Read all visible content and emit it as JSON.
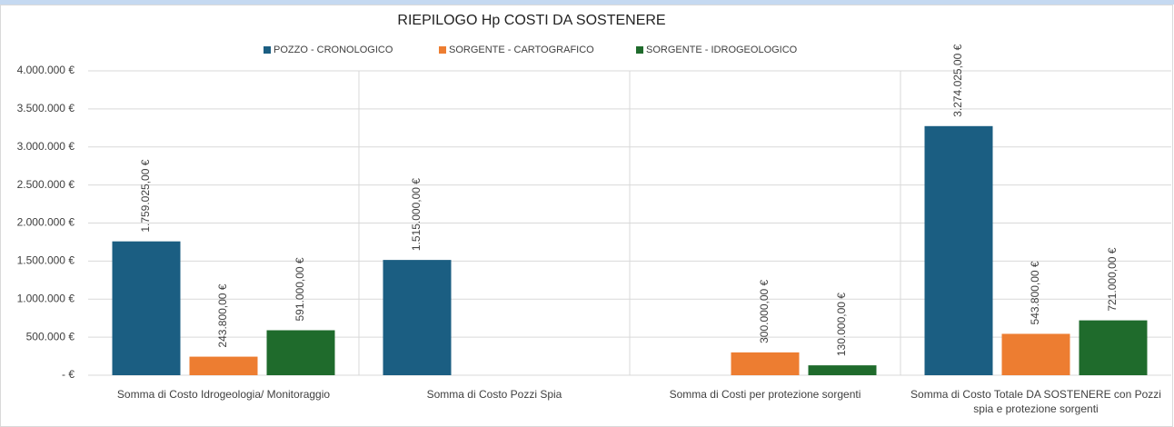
{
  "chart_data": {
    "type": "bar",
    "title": "RIEPILOGO Hp COSTI DA SOSTENERE",
    "categories": [
      "Somma di Costo Idrogeologia/ Monitoraggio",
      "Somma di Costo Pozzi Spia",
      "Somma di Costi per protezione sorgenti",
      "Somma di Costo Totale DA SOSTENERE con Pozzi spia e protezione sorgenti"
    ],
    "series": [
      {
        "name": "POZZO - CRONOLOGICO",
        "color": "#1b5e82",
        "values": [
          1759025,
          1515000,
          null,
          3274025
        ],
        "value_labels": [
          "1.759.025,00 €",
          "1.515.000,00 €",
          null,
          "3.274.025,00 €"
        ]
      },
      {
        "name": "SORGENTE - CARTOGRAFICO",
        "color": "#ed7d31",
        "values": [
          243800,
          null,
          300000,
          543800
        ],
        "value_labels": [
          "243.800,00 €",
          null,
          "300.000,00 €",
          "543.800,00 €"
        ]
      },
      {
        "name": "SORGENTE - IDROGEOLOGICO",
        "color": "#1f6b2c",
        "values": [
          591000,
          null,
          130000,
          721000
        ],
        "value_labels": [
          "591.000,00 €",
          null,
          "130.000,00 €",
          "721.000,00 €"
        ]
      }
    ],
    "ylim": [
      0,
      4000000
    ],
    "yticks": [
      {
        "value": 0,
        "label": "- €"
      },
      {
        "value": 500000,
        "label": "500.000 €"
      },
      {
        "value": 1000000,
        "label": "1.000.000 €"
      },
      {
        "value": 1500000,
        "label": "1.500.000 €"
      },
      {
        "value": 2000000,
        "label": "2.000.000 €"
      },
      {
        "value": 2500000,
        "label": "2.500.000 €"
      },
      {
        "value": 3000000,
        "label": "3.000.000 €"
      },
      {
        "value": 3500000,
        "label": "3.500.000 €"
      },
      {
        "value": 4000000,
        "label": "4.000.000 €"
      }
    ],
    "grid": true,
    "legend": "top"
  }
}
